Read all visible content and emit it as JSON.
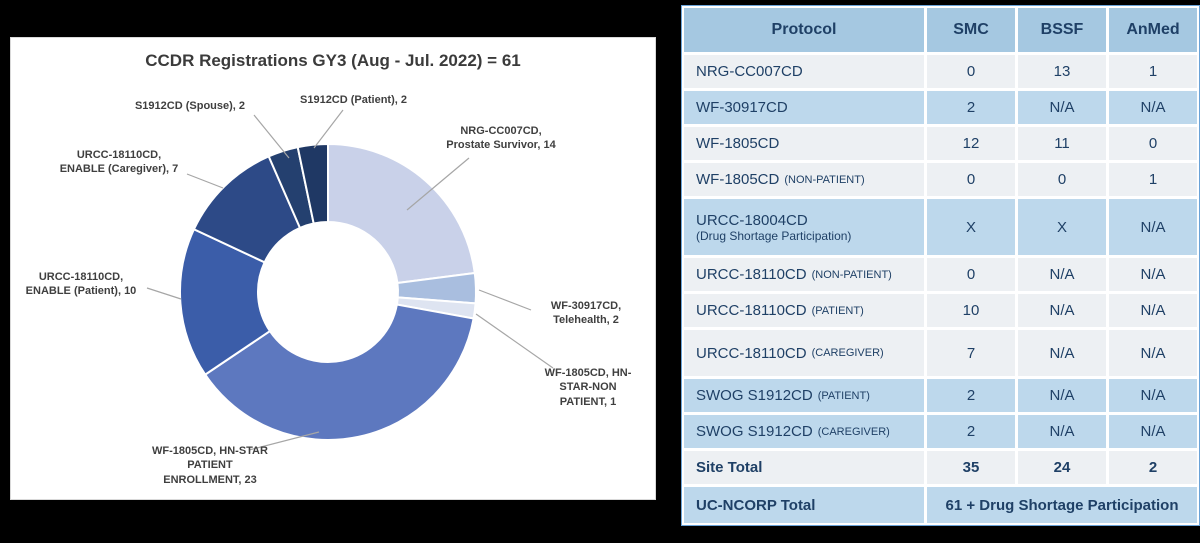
{
  "ui": {
    "panel_title": "CCDR Registrations GY3 (Aug - Jul. 2022) = 61",
    "callouts": [
      {
        "id": "s1912-spouse",
        "text": "S1912CD (Spouse), 2"
      },
      {
        "id": "s1912-patient",
        "text": "S1912CD (Patient), 2"
      },
      {
        "id": "nrg-cc007cd",
        "text": "NRG-CC007CD,\nProstate Survivor, 14"
      },
      {
        "id": "urcc-caregiver",
        "text": "URCC-18110CD,\nENABLE (Caregiver), 7"
      },
      {
        "id": "urcc-patient",
        "text": "URCC-18110CD,\nENABLE (Patient), 10"
      },
      {
        "id": "wf-30917cd",
        "text": "WF-30917CD,\nTelehealth, 2"
      },
      {
        "id": "wf-1805cd-non",
        "text": "WF-1805CD, HN-\nSTAR-NON\nPATIENT, 1"
      },
      {
        "id": "wf-1805cd",
        "text": "WF-1805CD, HN-STAR\nPATIENT\nENROLLMENT, 23"
      }
    ]
  },
  "colors": {
    "page_bg": "#000000",
    "panel_bg": "#ffffff",
    "table_header_bg": "#a5c8e1",
    "row_blue": "#bdd8ec",
    "row_gray": "#edf0f3",
    "table_text": "#1f4066",
    "leader_line": "#a6a6a6",
    "callout_text": "#3f3f3f"
  },
  "chart_data": [
    {
      "type": "pie",
      "subtype": "donut",
      "title": "CCDR Registrations GY3 (Aug - Jul. 2022) = 61",
      "total": 61,
      "start_angle_deg": 0,
      "clockwise": true,
      "legend_position": "none",
      "categories": [
        "NRG-CC007CD, Prostate Survivor",
        "WF-30917CD, Telehealth",
        "WF-1805CD, HN-STAR-NON PATIENT",
        "WF-1805CD, HN-STAR PATIENT ENROLLMENT",
        "URCC-18110CD, ENABLE (Patient)",
        "URCC-18110CD, ENABLE (Caregiver)",
        "S1912CD (Spouse)",
        "S1912CD (Patient)"
      ],
      "values": [
        14,
        2,
        1,
        23,
        10,
        7,
        2,
        2
      ],
      "colors": [
        "#c9d1e9",
        "#a9bedf",
        "#dee4f1",
        "#5d78bf",
        "#3b5da9",
        "#2d4a87",
        "#24406f",
        "#1f3864"
      ]
    },
    {
      "type": "table",
      "columns": [
        "Protocol",
        "SMC",
        "BSSF",
        "AnMed"
      ],
      "rows": [
        {
          "protocol": "NRG-CC007CD",
          "suffix": "",
          "sub": "",
          "cells": [
            "0",
            "13",
            "1"
          ],
          "shade": "gray",
          "size": ""
        },
        {
          "protocol": "WF-30917CD",
          "suffix": "",
          "sub": "",
          "cells": [
            "2",
            "N/A",
            "N/A"
          ],
          "shade": "blue",
          "size": ""
        },
        {
          "protocol": "WF-1805CD",
          "suffix": "",
          "sub": "",
          "cells": [
            "12",
            "11",
            "0"
          ],
          "shade": "gray",
          "size": ""
        },
        {
          "protocol": "WF-1805CD",
          "suffix": "(NON-PATIENT)",
          "sub": "",
          "cells": [
            "0",
            "0",
            "1"
          ],
          "shade": "gray",
          "size": ""
        },
        {
          "protocol": "URCC-18004CD",
          "suffix": "",
          "sub": "(Drug Shortage Participation)",
          "cells": [
            "X",
            "X",
            "N/A"
          ],
          "shade": "blue",
          "size": "tall"
        },
        {
          "protocol": "URCC-18110CD",
          "suffix": "(NON-PATIENT)",
          "sub": "",
          "cells": [
            "0",
            "N/A",
            "N/A"
          ],
          "shade": "gray",
          "size": ""
        },
        {
          "protocol": "URCC-18110CD",
          "suffix": "(PATIENT)",
          "sub": "",
          "cells": [
            "10",
            "N/A",
            "N/A"
          ],
          "shade": "gray",
          "size": ""
        },
        {
          "protocol": "URCC-18110CD",
          "suffix": "(CAREGIVER)",
          "sub": "",
          "cells": [
            "7",
            "N/A",
            "N/A"
          ],
          "shade": "gray",
          "size": "tall2"
        },
        {
          "protocol": "SWOG S1912CD",
          "suffix": "(PATIENT)",
          "sub": "",
          "cells": [
            "2",
            "N/A",
            "N/A"
          ],
          "shade": "blue",
          "size": ""
        },
        {
          "protocol": "SWOG S1912CD",
          "suffix": "(CAREGIVER)",
          "sub": "",
          "cells": [
            "2",
            "N/A",
            "N/A"
          ],
          "shade": "blue",
          "size": ""
        }
      ],
      "site_total": {
        "label": "Site Total",
        "cells": [
          "35",
          "24",
          "2"
        ]
      },
      "grand_total": {
        "label": "UC-NCORP Total",
        "value": "61 + Drug Shortage Participation"
      }
    }
  ]
}
